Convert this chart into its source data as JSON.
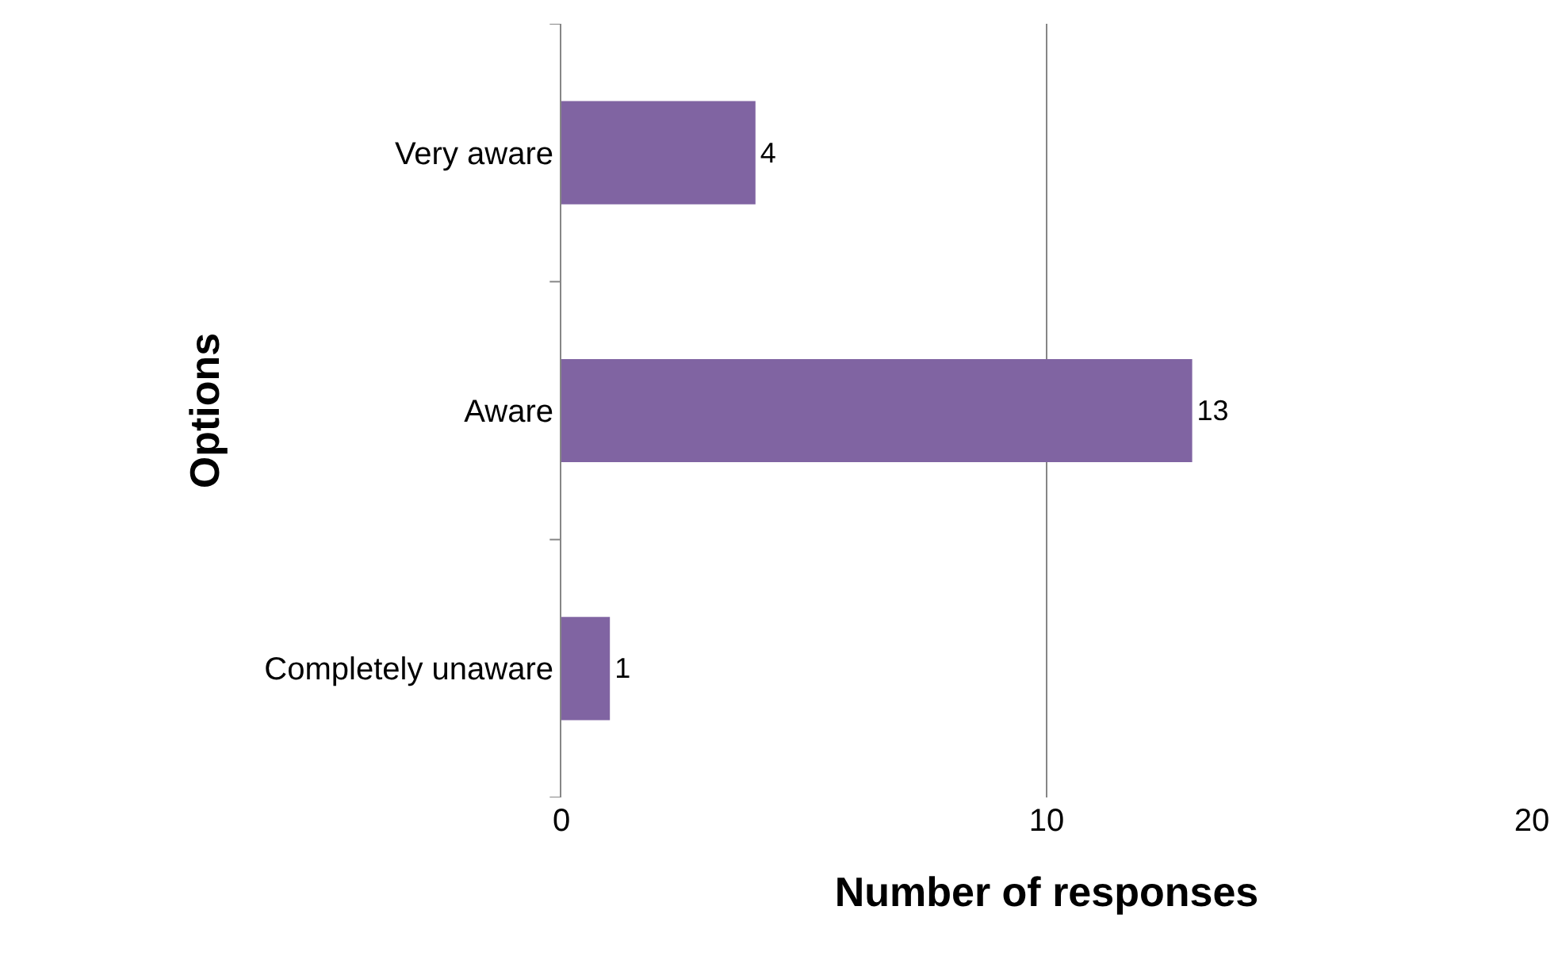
{
  "chart_data": {
    "type": "bar",
    "orientation": "horizontal",
    "categories": [
      "Very aware",
      "Aware",
      "Completely unaware"
    ],
    "values": [
      4,
      13,
      1
    ],
    "color": "#8064a2",
    "xlim": [
      0,
      20
    ],
    "xticks": [
      0,
      10,
      20
    ],
    "grid": "x",
    "data_labels": true,
    "xlabel": "Number of responses",
    "ylabel": "Options"
  }
}
